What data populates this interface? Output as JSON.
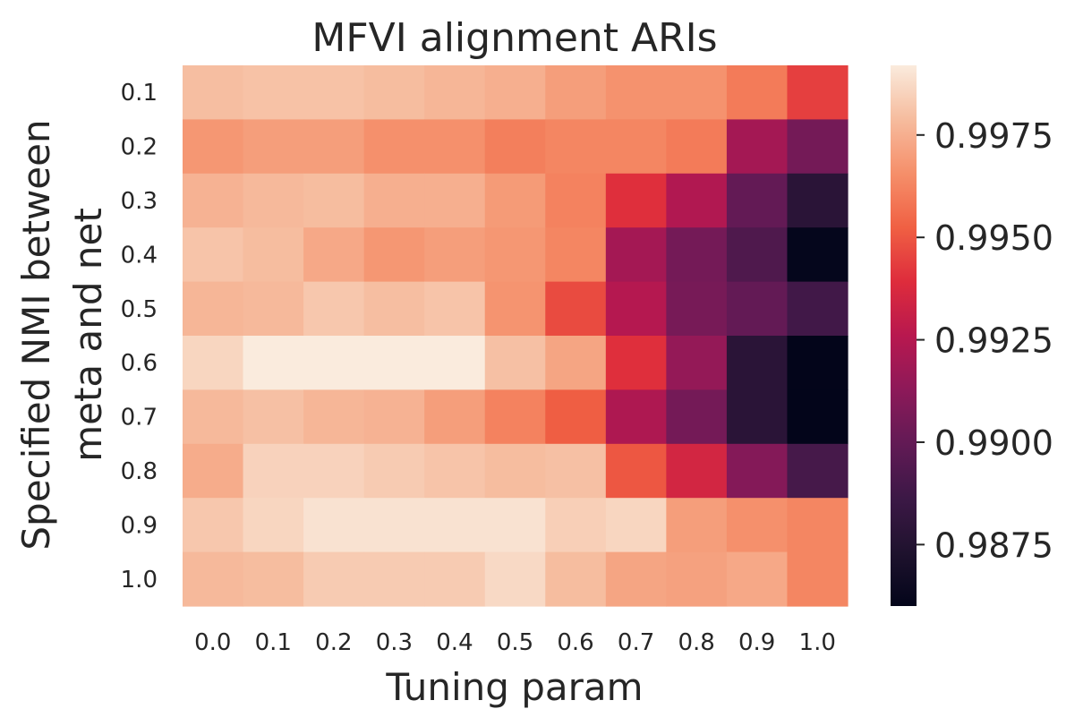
{
  "chart_data": {
    "type": "heatmap",
    "title": "MFVI alignment ARIs",
    "xlabel": "Tuning param",
    "ylabel_lines": [
      "Specified NMI between",
      "meta and net"
    ],
    "x_categories": [
      "0.0",
      "0.1",
      "0.2",
      "0.3",
      "0.4",
      "0.5",
      "0.6",
      "0.7",
      "0.8",
      "0.9",
      "1.0"
    ],
    "y_categories": [
      "0.1",
      "0.2",
      "0.3",
      "0.4",
      "0.5",
      "0.6",
      "0.7",
      "0.8",
      "0.9",
      "1.0"
    ],
    "values": [
      [
        0.99795,
        0.99805,
        0.99805,
        0.9979,
        0.9977,
        0.9975,
        0.997,
        0.99665,
        0.99665,
        0.996,
        0.9944
      ],
      [
        0.9968,
        0.997,
        0.997,
        0.9966,
        0.9966,
        0.9961,
        0.9963,
        0.9963,
        0.996,
        0.992,
        0.9905
      ],
      [
        0.9976,
        0.9978,
        0.9979,
        0.9975,
        0.9975,
        0.9969,
        0.9962,
        0.994,
        0.9924,
        0.99,
        0.9878
      ],
      [
        0.9981,
        0.9979,
        0.9973,
        0.9968,
        0.997,
        0.9968,
        0.9963,
        0.992,
        0.9905,
        0.9893,
        0.9861
      ],
      [
        0.9977,
        0.9978,
        0.9982,
        0.99795,
        0.9981,
        0.9967,
        0.9947,
        0.9925,
        0.9906,
        0.99,
        0.9888
      ],
      [
        0.9986,
        0.9992,
        0.9992,
        0.9992,
        0.9992,
        0.998,
        0.9972,
        0.994,
        0.9915,
        0.9878,
        0.986
      ],
      [
        0.9978,
        0.998,
        0.9977,
        0.9976,
        0.997,
        0.9962,
        0.9952,
        0.9923,
        0.9905,
        0.9878,
        0.986
      ],
      [
        0.9974,
        0.9985,
        0.9985,
        0.9983,
        0.9981,
        0.9979,
        0.998,
        0.995,
        0.9935,
        0.991,
        0.989
      ],
      [
        0.9982,
        0.9986,
        0.99895,
        0.99895,
        0.99895,
        0.99895,
        0.9984,
        0.9986,
        0.997,
        0.9966,
        0.9963
      ],
      [
        0.9978,
        0.9979,
        0.9983,
        0.9983,
        0.9983,
        0.9987,
        0.9979,
        0.9972,
        0.9971,
        0.9973,
        0.9963
      ]
    ],
    "color_scale": "rocket",
    "vmin": 0.986,
    "vmax": 0.9992,
    "colorbar_ticks": [
      {
        "value": 0.9875,
        "label": "0.9875"
      },
      {
        "value": 0.99,
        "label": "0.9900"
      },
      {
        "value": 0.9925,
        "label": "0.9925"
      },
      {
        "value": 0.995,
        "label": "0.9950"
      },
      {
        "value": 0.9975,
        "label": "0.9975"
      }
    ],
    "grid": false,
    "legend": "colorbar-right"
  }
}
